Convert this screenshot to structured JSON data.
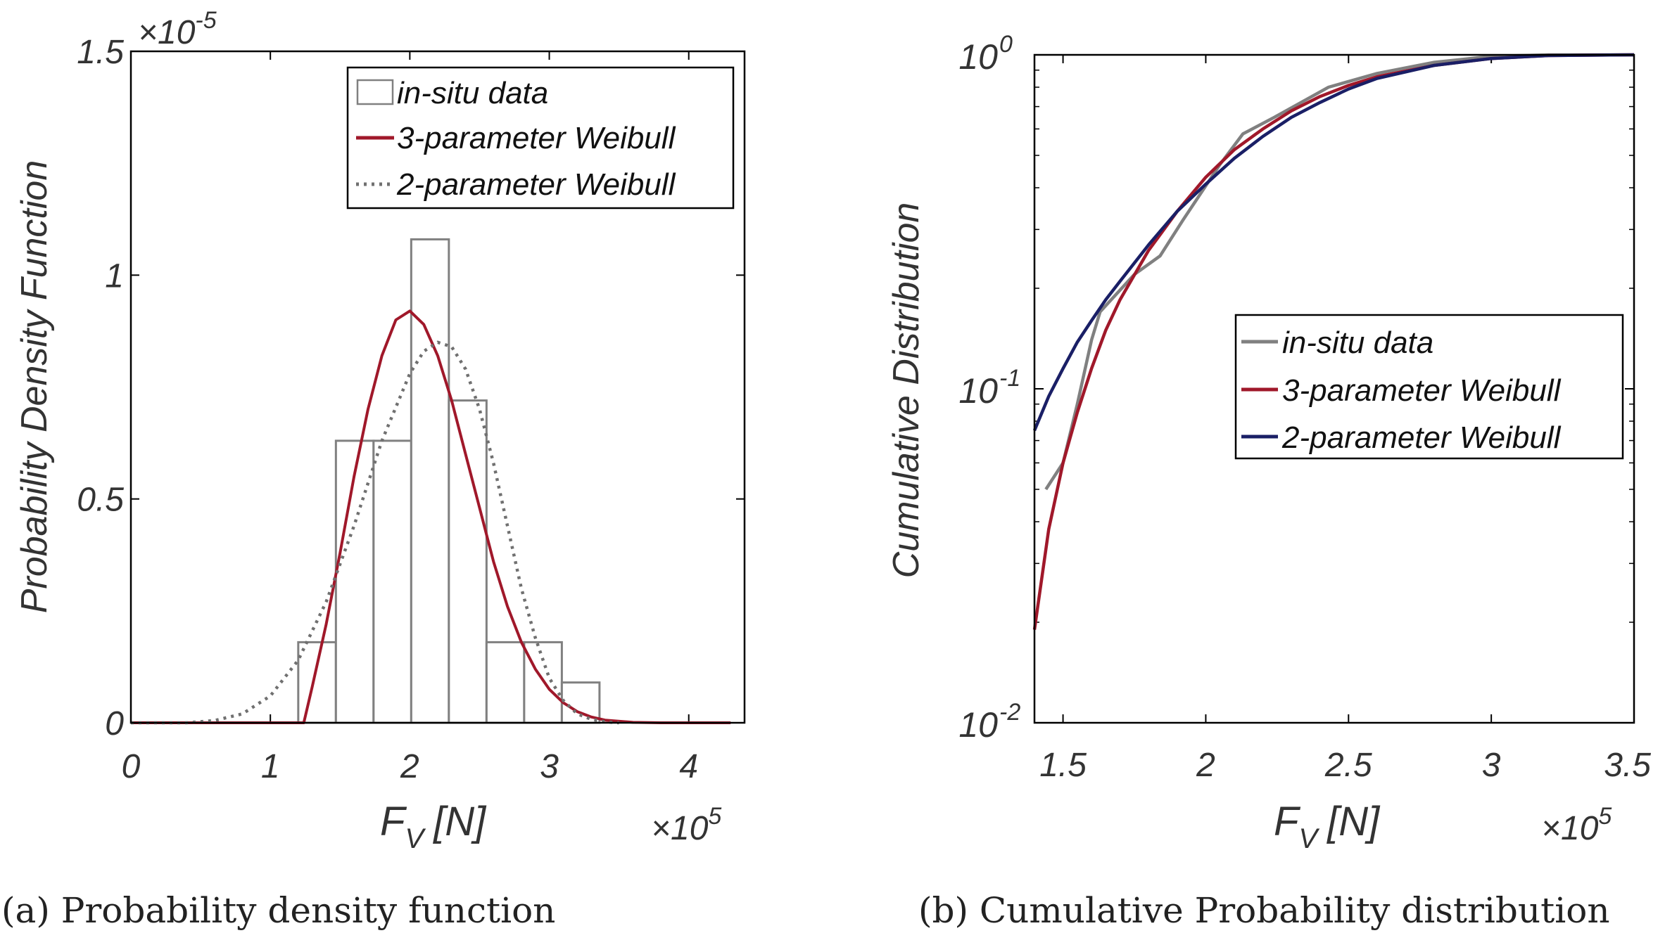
{
  "chart_data": [
    {
      "panel": "a",
      "type": "histogram",
      "caption": "(a) Probability density function",
      "xlabel": "F",
      "xlabel_sub": "V",
      "xlabel_unit": "[N]",
      "x_multiplier_base": "×10",
      "x_multiplier_exp": "5",
      "ylabel": "Probability Density Function",
      "y_multiplier_base": "×10",
      "y_multiplier_exp": "-5",
      "xlim": [
        0,
        4.4
      ],
      "ylim": [
        0,
        1.5
      ],
      "xticks": [
        0,
        1,
        2,
        3,
        4
      ],
      "xtick_labels": [
        "0",
        "1",
        "2",
        "3",
        "4"
      ],
      "yticks": [
        0,
        0.5,
        1,
        1.5
      ],
      "ytick_labels": [
        "0",
        "0.5",
        "1",
        "1.5"
      ],
      "histogram": {
        "bin_edges": [
          1.2,
          1.47,
          1.74,
          2.01,
          2.28,
          2.55,
          2.82,
          3.09,
          3.36
        ],
        "values": [
          0.18,
          0.63,
          0.63,
          1.08,
          0.72,
          0.18,
          0.18,
          0.09
        ]
      },
      "series": [
        {
          "name": "3-parameter Weibull",
          "color": "#A0182A",
          "style": "solid",
          "x": [
            0,
            0.5,
            1.0,
            1.2,
            1.24,
            1.3,
            1.4,
            1.5,
            1.6,
            1.7,
            1.8,
            1.9,
            2.0,
            2.1,
            2.2,
            2.3,
            2.4,
            2.5,
            2.6,
            2.7,
            2.8,
            2.9,
            3.0,
            3.1,
            3.2,
            3.3,
            3.4,
            3.6,
            3.8,
            4.0,
            4.3
          ],
          "y": [
            0,
            0,
            0,
            0,
            0.0,
            0.08,
            0.22,
            0.38,
            0.55,
            0.7,
            0.82,
            0.9,
            0.92,
            0.89,
            0.82,
            0.72,
            0.6,
            0.48,
            0.36,
            0.26,
            0.18,
            0.12,
            0.075,
            0.045,
            0.025,
            0.013,
            0.006,
            0.001,
            0.0,
            0,
            0
          ]
        },
        {
          "name": "2-parameter Weibull",
          "color": "#707070",
          "style": "dotted",
          "x": [
            0,
            0.4,
            0.6,
            0.8,
            1.0,
            1.2,
            1.4,
            1.6,
            1.8,
            2.0,
            2.1,
            2.2,
            2.3,
            2.4,
            2.5,
            2.6,
            2.7,
            2.8,
            2.9,
            3.0,
            3.1,
            3.2,
            3.3,
            3.4,
            3.5
          ],
          "y": [
            0,
            0.0,
            0.005,
            0.02,
            0.06,
            0.14,
            0.27,
            0.44,
            0.63,
            0.78,
            0.83,
            0.85,
            0.84,
            0.79,
            0.7,
            0.58,
            0.44,
            0.3,
            0.19,
            0.1,
            0.05,
            0.02,
            0.008,
            0.002,
            0.0
          ]
        }
      ],
      "legend": {
        "placement": "top-right",
        "entries": [
          "in-situ data",
          "3-parameter Weibull",
          "2-parameter Weibull"
        ]
      }
    },
    {
      "panel": "b",
      "type": "line",
      "caption": "(b) Cumulative Probability distribution",
      "xlabel": "F",
      "xlabel_sub": "V",
      "xlabel_unit": "[N]",
      "x_multiplier_base": "×10",
      "x_multiplier_exp": "5",
      "ylabel": "Cumulative Distribution",
      "yscale": "log",
      "xlim": [
        1.4,
        3.5
      ],
      "ylim": [
        0.01,
        1
      ],
      "xticks": [
        1.5,
        2,
        2.5,
        3,
        3.5
      ],
      "xtick_labels": [
        "1.5",
        "2",
        "2.5",
        "3",
        "3.5"
      ],
      "yticks": [
        0.01,
        0.1,
        1
      ],
      "ytick_base": "10",
      "ytick_exponents": [
        "-2",
        "-1",
        "0"
      ],
      "series": [
        {
          "name": "in-situ data",
          "color": "#808080",
          "x": [
            1.44,
            1.5,
            1.55,
            1.6,
            1.63,
            1.75,
            1.84,
            1.92,
            2.05,
            2.13,
            2.24,
            2.43,
            2.6,
            2.8,
            3.0,
            3.2,
            3.5
          ],
          "y": [
            0.05,
            0.06,
            0.09,
            0.14,
            0.17,
            0.22,
            0.25,
            0.32,
            0.47,
            0.58,
            0.65,
            0.8,
            0.88,
            0.95,
            0.99,
            1.0,
            1.0
          ]
        },
        {
          "name": "3-parameter Weibull",
          "color": "#A0182A",
          "x": [
            1.4,
            1.45,
            1.5,
            1.55,
            1.6,
            1.65,
            1.7,
            1.8,
            1.9,
            2.0,
            2.1,
            2.2,
            2.3,
            2.4,
            2.5,
            2.6,
            2.8,
            3.0,
            3.2,
            3.5
          ],
          "y": [
            0.019,
            0.038,
            0.06,
            0.085,
            0.115,
            0.15,
            0.185,
            0.26,
            0.34,
            0.43,
            0.52,
            0.6,
            0.68,
            0.75,
            0.81,
            0.86,
            0.93,
            0.975,
            0.995,
            1.0
          ]
        },
        {
          "name": "2-parameter Weibull",
          "color": "#1A1F66",
          "x": [
            1.4,
            1.45,
            1.5,
            1.55,
            1.6,
            1.65,
            1.7,
            1.8,
            1.9,
            2.0,
            2.1,
            2.2,
            2.3,
            2.4,
            2.5,
            2.6,
            2.8,
            3.0,
            3.2,
            3.5
          ],
          "y": [
            0.075,
            0.095,
            0.115,
            0.138,
            0.16,
            0.185,
            0.21,
            0.27,
            0.34,
            0.41,
            0.49,
            0.57,
            0.65,
            0.72,
            0.79,
            0.85,
            0.93,
            0.975,
            0.995,
            1.0
          ]
        }
      ],
      "legend": {
        "placement": "center-right",
        "entries": [
          "in-situ data",
          "3-parameter Weibull",
          "2-parameter Weibull"
        ]
      }
    }
  ]
}
